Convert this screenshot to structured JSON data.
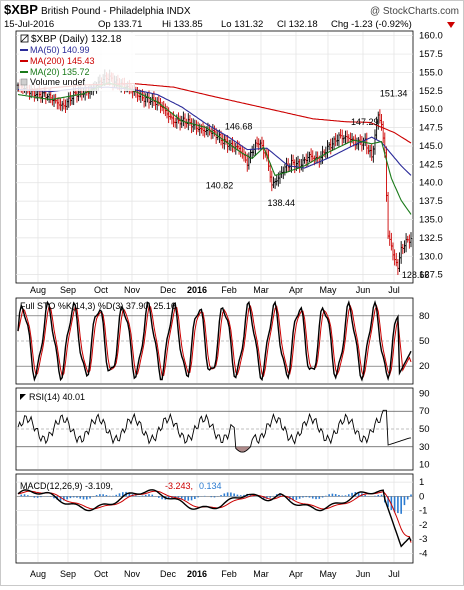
{
  "header": {
    "symbol": "$XBP",
    "name": "British Pound - Philadelphia INDX",
    "watermark": "@ StockCharts.com",
    "date": "15-Jul-2016",
    "quote_open": "Op 133.71",
    "quote_high": "Hi 133.85",
    "quote_low": "Lo 131.32",
    "quote_close": "Cl 132.18",
    "quote_change": "Chg -1.23 (-0.92%)"
  },
  "legend": {
    "price": "$XBP (Daily) 132.18",
    "ma50": "MA(50) 140.99",
    "ma200": "MA(200) 145.43",
    "ma20": "MA(20) 135.72",
    "volume": "Volume undef"
  },
  "panel_labels": {
    "sto": "Full STO %K(14,3) %D(3) 37.90, 25.16",
    "rsi": "RSI(14) 40.01",
    "macd_prefix": "MACD(12,26,9) -3.109,",
    "macd_signal_value": "-3.243,",
    "macd_hist_value": "0.134"
  },
  "colors": {
    "up": "#000000",
    "down": "#cc0000",
    "ma50": "#2b2b99",
    "ma200": "#cc0000",
    "ma20": "#1a7a1a",
    "hist": "#2b7bd1",
    "grid": "#e2e2e2",
    "rsi_fill": "#8b5a5a"
  },
  "chart_data": [
    {
      "type": "candlestick",
      "title": "$XBP British Pound - Philadelphia INDX",
      "x_labels": [
        "Aug",
        "Sep",
        "Oct",
        "Nov",
        "Dec",
        "2016",
        "Feb",
        "Mar",
        "Apr",
        "May",
        "Jun",
        "Jul"
      ],
      "ylim": [
        126.5,
        160.5
      ],
      "y_ticks": [
        "160.0",
        "157.5",
        "155.0",
        "152.5",
        "150.0",
        "147.5",
        "145.0",
        "142.5",
        "140.0",
        "137.5",
        "135.0",
        "132.5",
        "130.0",
        "127.5"
      ],
      "annotations": [
        "151.34",
        "147.29",
        "146.68",
        "140.82",
        "138.44",
        "128.66"
      ],
      "price_anchors": [
        [
          0,
          153.0
        ],
        [
          10,
          152.4
        ],
        [
          20,
          151.4
        ],
        [
          28,
          150.6
        ],
        [
          35,
          151.9
        ],
        [
          45,
          152.8
        ],
        [
          55,
          154.3
        ],
        [
          62,
          153.6
        ],
        [
          70,
          152.3
        ],
        [
          80,
          151.4
        ],
        [
          88,
          150.2
        ],
        [
          95,
          148.6
        ],
        [
          103,
          148.1
        ],
        [
          110,
          147.6
        ],
        [
          118,
          146.8
        ],
        [
          124,
          145.9
        ],
        [
          128,
          145.5
        ],
        [
          135,
          144.5
        ],
        [
          140,
          142.6
        ],
        [
          143,
          144.6
        ],
        [
          147,
          145.8
        ],
        [
          152,
          143.3
        ],
        [
          155,
          139.5
        ],
        [
          158,
          140.4
        ],
        [
          163,
          142.3
        ],
        [
          167,
          142.6
        ],
        [
          172,
          142.2
        ],
        [
          178,
          143.9
        ],
        [
          184,
          143.1
        ],
        [
          190,
          144.8
        ],
        [
          196,
          146.5
        ],
        [
          202,
          146.0
        ],
        [
          206,
          145.2
        ],
        [
          212,
          145.8
        ],
        [
          216,
          143.6
        ],
        [
          218,
          146.3
        ],
        [
          220,
          149.2
        ],
        [
          222,
          147.6
        ],
        [
          224,
          144.0
        ],
        [
          226,
          132.7
        ],
        [
          228,
          131.7
        ],
        [
          230,
          129.5
        ],
        [
          232,
          128.9
        ],
        [
          234,
          130.8
        ],
        [
          236,
          131.6
        ],
        [
          238,
          131.9
        ],
        [
          240,
          132.2
        ]
      ],
      "ma50_anchors": [
        [
          0,
          152.7
        ],
        [
          20,
          152.4
        ],
        [
          40,
          152.9
        ],
        [
          55,
          153.0
        ],
        [
          70,
          152.7
        ],
        [
          85,
          152.0
        ],
        [
          100,
          150.3
        ],
        [
          115,
          148.0
        ],
        [
          128,
          146.3
        ],
        [
          140,
          144.5
        ],
        [
          152,
          144.7
        ],
        [
          165,
          142.3
        ],
        [
          175,
          142.0
        ],
        [
          190,
          143.4
        ],
        [
          205,
          145.1
        ],
        [
          216,
          146.2
        ],
        [
          222,
          145.5
        ],
        [
          228,
          143.9
        ],
        [
          234,
          142.3
        ],
        [
          240,
          141.0
        ]
      ],
      "ma200_anchors": [
        [
          0,
          152.5
        ],
        [
          40,
          153.3
        ],
        [
          70,
          153.5
        ],
        [
          95,
          153.0
        ],
        [
          120,
          151.7
        ],
        [
          150,
          150.2
        ],
        [
          180,
          148.7
        ],
        [
          200,
          148.3
        ],
        [
          215,
          148.2
        ],
        [
          230,
          146.8
        ],
        [
          240,
          145.4
        ]
      ],
      "ma20_anchors": [
        [
          0,
          152.0
        ],
        [
          20,
          151.3
        ],
        [
          40,
          152.1
        ],
        [
          55,
          153.6
        ],
        [
          70,
          152.6
        ],
        [
          85,
          151.0
        ],
        [
          100,
          148.4
        ],
        [
          115,
          147.5
        ],
        [
          128,
          145.4
        ],
        [
          137,
          144.0
        ],
        [
          143,
          143.3
        ],
        [
          150,
          144.8
        ],
        [
          157,
          141.0
        ],
        [
          165,
          141.5
        ],
        [
          175,
          142.3
        ],
        [
          190,
          144.2
        ],
        [
          205,
          145.8
        ],
        [
          216,
          145.3
        ],
        [
          222,
          145.6
        ],
        [
          228,
          140.6
        ],
        [
          234,
          137.6
        ],
        [
          240,
          135.7
        ]
      ]
    },
    {
      "type": "line",
      "name": "Full STO %K(14,3) %D(3)",
      "ylim": [
        0,
        100
      ],
      "y_ticks": [
        "80",
        "50",
        "20"
      ],
      "last_values": [
        37.9,
        25.16
      ]
    },
    {
      "type": "line",
      "name": "RSI(14)",
      "ylim": [
        0,
        100
      ],
      "y_ticks": [
        "90",
        "70",
        "50",
        "30",
        "10"
      ],
      "last_value": 40.01
    },
    {
      "type": "line",
      "name": "MACD(12,26,9)",
      "ylim": [
        -4.6,
        1.5
      ],
      "y_ticks": [
        "1",
        "0",
        "-1",
        "-2",
        "-3",
        "-4"
      ],
      "last_values": {
        "macd": -3.109,
        "signal": -3.243,
        "histogram": 0.134
      }
    }
  ]
}
